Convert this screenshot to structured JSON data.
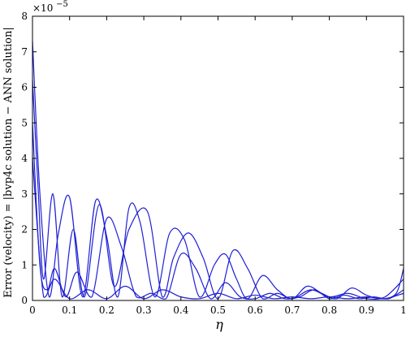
{
  "chart_data": {
    "type": "line",
    "title": "",
    "xlabel": "η",
    "ylabel": "Error (velocity) = |bvp4c solution − ANN solution|",
    "y_multiplier_label": "×10",
    "y_multiplier_exponent": "−5",
    "xlim": [
      0,
      1
    ],
    "ylim": [
      0,
      8
    ],
    "grid": false,
    "legend": "none",
    "line_color": "#1f1fd6",
    "x_ticks": [
      "0",
      "0.1",
      "0.2",
      "0.3",
      "0.4",
      "0.5",
      "0.6",
      "0.7",
      "0.8",
      "0.9",
      "1"
    ],
    "y_ticks": [
      "0",
      "1",
      "2",
      "3",
      "4",
      "5",
      "6",
      "7",
      "8"
    ],
    "series": [
      {
        "x": [
          0,
          0.02,
          0.045,
          0.07,
          0.1,
          0.135,
          0.17,
          0.2,
          0.23,
          0.26,
          0.29,
          0.33,
          0.37,
          0.41,
          0.45,
          0.49,
          0.52,
          0.55,
          0.58,
          0.62,
          0.66,
          0.7,
          0.74,
          0.78,
          0.82,
          0.86,
          0.9,
          0.94,
          0.98,
          1.0
        ],
        "y": [
          7.3,
          3.0,
          0.1,
          1.9,
          2.9,
          0.1,
          2.8,
          1.8,
          0.1,
          2.6,
          2.2,
          0.1,
          1.9,
          1.7,
          0.1,
          1.0,
          1.3,
          0.6,
          0.05,
          0.7,
          0.3,
          0.05,
          0.4,
          0.2,
          0.05,
          0.35,
          0.15,
          0.05,
          0.2,
          0.9
        ]
      },
      {
        "x": [
          0,
          0.015,
          0.03,
          0.055,
          0.08,
          0.11,
          0.14,
          0.18,
          0.22,
          0.26,
          0.31,
          0.35,
          0.38,
          0.42,
          0.46,
          0.5,
          0.54,
          0.58,
          0.62,
          0.66,
          0.7,
          0.75,
          0.8,
          0.85,
          0.9,
          0.95,
          1.0
        ],
        "y": [
          6.2,
          3.2,
          0.6,
          3.0,
          0.1,
          2.0,
          0.1,
          2.7,
          0.4,
          2.0,
          2.5,
          0.1,
          1.2,
          1.9,
          1.2,
          0.05,
          1.4,
          0.9,
          0.05,
          0.2,
          0.05,
          0.3,
          0.1,
          0.2,
          0.05,
          0.1,
          0.6
        ]
      },
      {
        "x": [
          0,
          0.02,
          0.04,
          0.06,
          0.09,
          0.12,
          0.16,
          0.2,
          0.24,
          0.28,
          0.32,
          0.36,
          0.4,
          0.44,
          0.48,
          0.52,
          0.56,
          0.6,
          0.64,
          0.68,
          0.72,
          0.76,
          0.8,
          0.84,
          0.88,
          0.92,
          0.96,
          1.0
        ],
        "y": [
          5.0,
          1.0,
          0.3,
          0.9,
          0.1,
          0.8,
          0.1,
          2.3,
          1.5,
          0.1,
          0.2,
          0.05,
          1.3,
          0.9,
          0.05,
          0.5,
          0.1,
          0.05,
          0.2,
          0.05,
          0.1,
          0.3,
          0.05,
          0.15,
          0.05,
          0.1,
          0.05,
          0.3
        ]
      },
      {
        "x": [
          0,
          0.03,
          0.06,
          0.1,
          0.15,
          0.2,
          0.25,
          0.3,
          0.35,
          0.4,
          0.45,
          0.5,
          0.55,
          0.6,
          0.65,
          0.7,
          0.75,
          0.8,
          0.85,
          0.9,
          0.95,
          1.0
        ],
        "y": [
          4.0,
          0.1,
          0.6,
          0.05,
          0.3,
          0.05,
          0.4,
          0.05,
          0.3,
          0.1,
          0.05,
          0.2,
          0.05,
          0.15,
          0.05,
          0.1,
          0.05,
          0.1,
          0.05,
          0.1,
          0.05,
          0.2
        ]
      }
    ]
  }
}
